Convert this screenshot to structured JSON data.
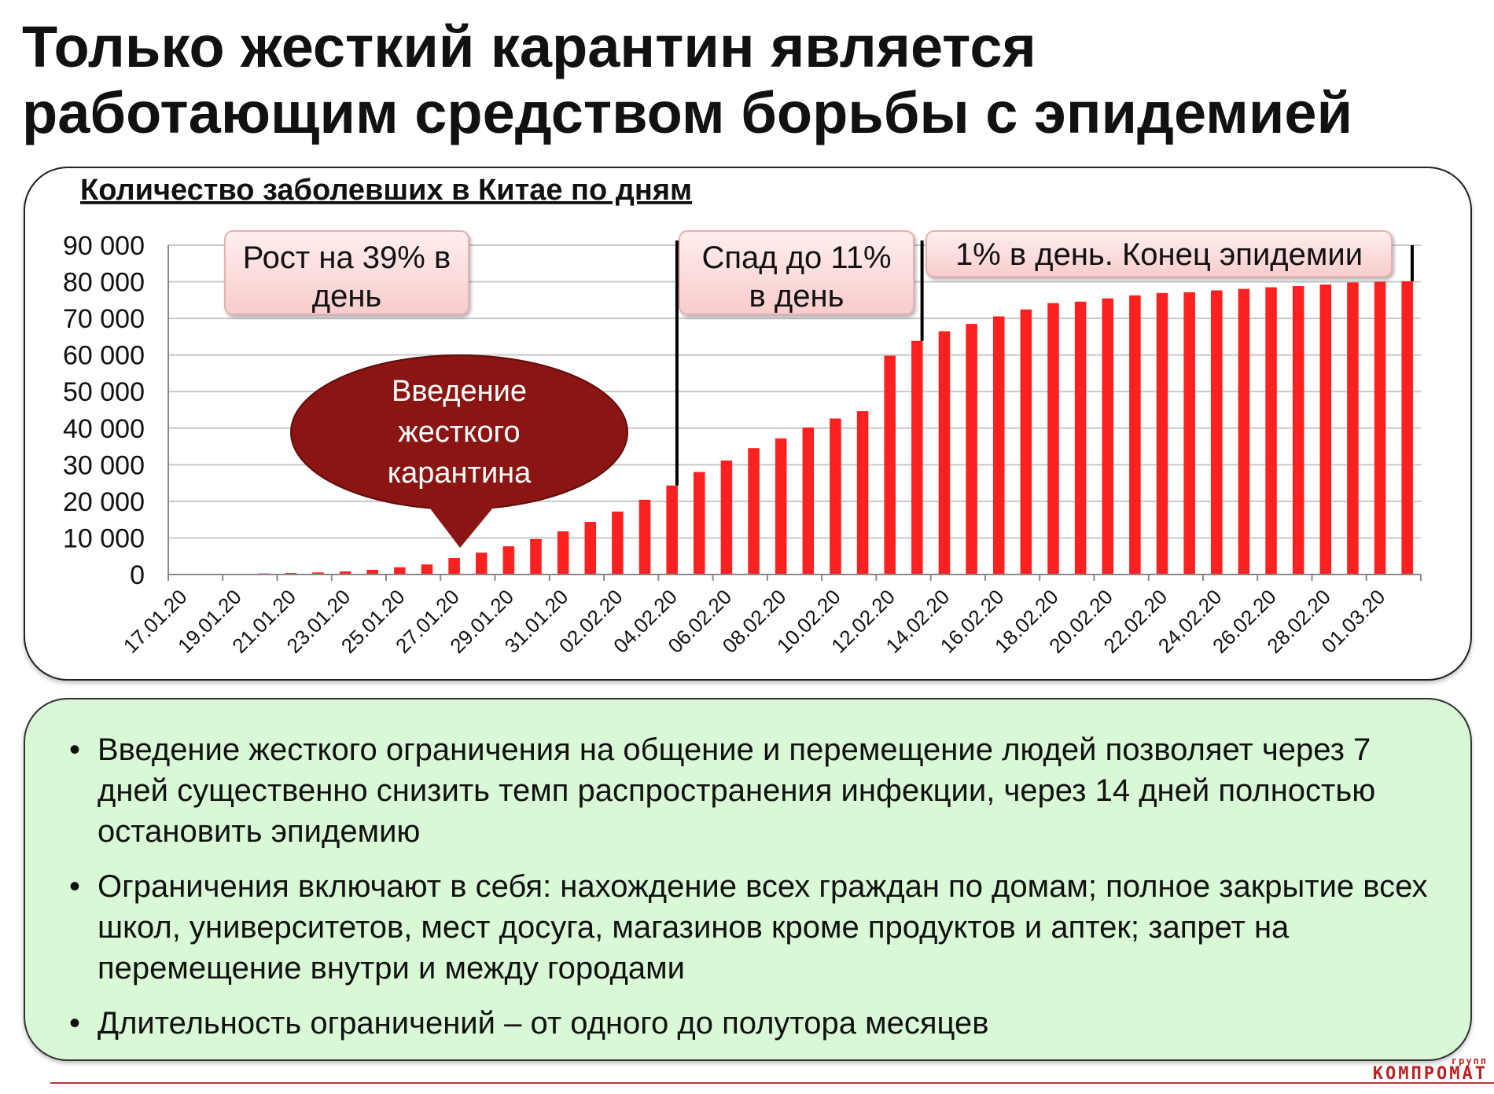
{
  "slide": {
    "title_line1": "Только жесткий карантин является",
    "title_line2": "работающим средством борьбы с эпидемией"
  },
  "chart_data": {
    "type": "bar",
    "title": "Количество заболевших в Китае по дням",
    "xlabel": "",
    "ylabel": "",
    "ylim": [
      0,
      90000
    ],
    "yticks": [
      "0",
      "10 000",
      "20 000",
      "30 000",
      "40 000",
      "50 000",
      "60 000",
      "70 000",
      "80 000",
      "90 000"
    ],
    "grid": true,
    "bar_color": "#ff2020",
    "categories": [
      "17.01.20",
      "18.01.20",
      "19.01.20",
      "20.01.20",
      "21.01.20",
      "22.01.20",
      "23.01.20",
      "24.01.20",
      "25.01.20",
      "26.01.20",
      "27.01.20",
      "28.01.20",
      "29.01.20",
      "30.01.20",
      "31.01.20",
      "01.02.20",
      "02.02.20",
      "03.02.20",
      "04.02.20",
      "05.02.20",
      "06.02.20",
      "07.02.20",
      "08.02.20",
      "09.02.20",
      "10.02.20",
      "11.02.20",
      "12.02.20",
      "13.02.20",
      "14.02.20",
      "15.02.20",
      "16.02.20",
      "17.02.20",
      "18.02.20",
      "19.02.20",
      "20.02.20",
      "21.02.20",
      "22.02.20",
      "23.02.20",
      "24.02.20",
      "25.02.20",
      "26.02.20",
      "27.02.20",
      "28.02.20",
      "29.02.20",
      "01.03.20",
      "02.03.20"
    ],
    "shown_x_labels": [
      "17.01.20",
      "19.01.20",
      "21.01.20",
      "23.01.20",
      "25.01.20",
      "27.01.20",
      "29.01.20",
      "31.01.20",
      "02.02.20",
      "04.02.20",
      "06.02.20",
      "08.02.20",
      "10.02.20",
      "12.02.20",
      "14.02.20",
      "16.02.20",
      "18.02.20",
      "20.02.20",
      "22.02.20",
      "24.02.20",
      "26.02.20",
      "28.02.20",
      "01.03.20"
    ],
    "values": [
      62,
      121,
      198,
      291,
      440,
      571,
      830,
      1287,
      1975,
      2744,
      4515,
      5974,
      7711,
      9692,
      11791,
      14380,
      17205,
      20438,
      24324,
      28018,
      31161,
      34546,
      37198,
      40171,
      42638,
      44653,
      59804,
      63851,
      66492,
      68500,
      70548,
      72436,
      74185,
      74576,
      75465,
      76288,
      76936,
      77150,
      77658,
      78064,
      78497,
      78824,
      79251,
      79824,
      80026,
      80151
    ],
    "annotations": [
      {
        "text_line1": "Рост на 39% в",
        "text_line2": "день"
      },
      {
        "text_line1": "Спад до 11%",
        "text_line2": "в день"
      },
      {
        "text_line1": "1% в день. Конец эпидемии",
        "text_line2": ""
      }
    ],
    "callout": {
      "line1": "Введение",
      "line2": "жесткого",
      "line3": "карантина",
      "color": "#8b1512"
    }
  },
  "bullets": [
    {
      "marker": "•",
      "text": "Введение жесткого ограничения на общение и перемещение людей позволяет через 7 дней существенно снизить темп распространения инфекции, через 14 дней полностью остановить эпидемию"
    },
    {
      "marker": "•",
      "text": "Ограничения включают в себя: нахождение всех граждан по домам; полное закрытие всех школ, университетов, мест досуга, магазинов кроме продуктов и аптек; запрет на перемещение внутри и между городами"
    },
    {
      "marker": "•",
      "text": "Длительность ограничений – от одного до полутора месяцев"
    }
  ],
  "watermark": {
    "small": "групп",
    "big": "КОМПРОМАТ"
  }
}
